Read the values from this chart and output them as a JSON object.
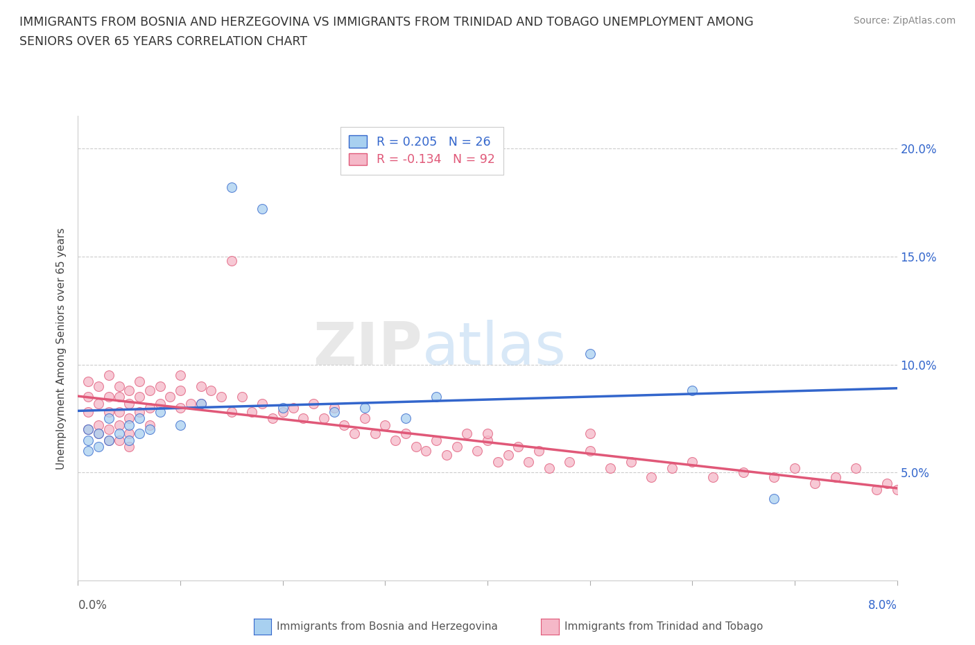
{
  "title_line1": "IMMIGRANTS FROM BOSNIA AND HERZEGOVINA VS IMMIGRANTS FROM TRINIDAD AND TOBAGO UNEMPLOYMENT AMONG",
  "title_line2": "SENIORS OVER 65 YEARS CORRELATION CHART",
  "source": "Source: ZipAtlas.com",
  "ylabel": "Unemployment Among Seniors over 65 years",
  "yticks": [
    "5.0%",
    "10.0%",
    "15.0%",
    "20.0%"
  ],
  "ytick_values": [
    0.05,
    0.1,
    0.15,
    0.2
  ],
  "xrange": [
    0.0,
    0.08
  ],
  "yrange": [
    0.0,
    0.215
  ],
  "legend_r1": "R = 0.205",
  "legend_n1": "N = 26",
  "legend_r2": "R = -0.134",
  "legend_n2": "N = 92",
  "color_blue": "#a8d0f0",
  "color_pink": "#f5b8c8",
  "color_blue_line": "#3366cc",
  "color_pink_line": "#e05878",
  "watermark_zip": "ZIP",
  "watermark_atlas": "atlas",
  "bosnia_x": [
    0.001,
    0.001,
    0.001,
    0.002,
    0.002,
    0.003,
    0.003,
    0.004,
    0.005,
    0.005,
    0.006,
    0.006,
    0.007,
    0.008,
    0.01,
    0.012,
    0.015,
    0.018,
    0.02,
    0.025,
    0.028,
    0.032,
    0.035,
    0.05,
    0.06,
    0.068
  ],
  "bosnia_y": [
    0.06,
    0.065,
    0.07,
    0.062,
    0.068,
    0.065,
    0.075,
    0.068,
    0.065,
    0.072,
    0.068,
    0.075,
    0.07,
    0.078,
    0.072,
    0.082,
    0.182,
    0.172,
    0.08,
    0.078,
    0.08,
    0.075,
    0.085,
    0.105,
    0.088,
    0.038
  ],
  "trinidad_x": [
    0.001,
    0.001,
    0.001,
    0.001,
    0.002,
    0.002,
    0.002,
    0.002,
    0.003,
    0.003,
    0.003,
    0.003,
    0.003,
    0.004,
    0.004,
    0.004,
    0.004,
    0.004,
    0.005,
    0.005,
    0.005,
    0.005,
    0.005,
    0.006,
    0.006,
    0.006,
    0.007,
    0.007,
    0.007,
    0.008,
    0.008,
    0.009,
    0.01,
    0.01,
    0.01,
    0.011,
    0.012,
    0.012,
    0.013,
    0.014,
    0.015,
    0.015,
    0.016,
    0.017,
    0.018,
    0.019,
    0.02,
    0.021,
    0.022,
    0.023,
    0.024,
    0.025,
    0.026,
    0.027,
    0.028,
    0.029,
    0.03,
    0.031,
    0.032,
    0.033,
    0.034,
    0.035,
    0.036,
    0.037,
    0.038,
    0.039,
    0.04,
    0.041,
    0.042,
    0.043,
    0.044,
    0.045,
    0.046,
    0.048,
    0.05,
    0.052,
    0.054,
    0.056,
    0.058,
    0.06,
    0.062,
    0.065,
    0.068,
    0.07,
    0.072,
    0.074,
    0.076,
    0.078,
    0.079,
    0.08,
    0.04,
    0.05
  ],
  "trinidad_y": [
    0.07,
    0.078,
    0.085,
    0.092,
    0.082,
    0.09,
    0.072,
    0.068,
    0.095,
    0.085,
    0.078,
    0.07,
    0.065,
    0.09,
    0.085,
    0.078,
    0.072,
    0.065,
    0.088,
    0.082,
    0.075,
    0.068,
    0.062,
    0.092,
    0.085,
    0.078,
    0.088,
    0.08,
    0.072,
    0.09,
    0.082,
    0.085,
    0.095,
    0.088,
    0.08,
    0.082,
    0.09,
    0.082,
    0.088,
    0.085,
    0.148,
    0.078,
    0.085,
    0.078,
    0.082,
    0.075,
    0.078,
    0.08,
    0.075,
    0.082,
    0.075,
    0.08,
    0.072,
    0.068,
    0.075,
    0.068,
    0.072,
    0.065,
    0.068,
    0.062,
    0.06,
    0.065,
    0.058,
    0.062,
    0.068,
    0.06,
    0.065,
    0.055,
    0.058,
    0.062,
    0.055,
    0.06,
    0.052,
    0.055,
    0.06,
    0.052,
    0.055,
    0.048,
    0.052,
    0.055,
    0.048,
    0.05,
    0.048,
    0.052,
    0.045,
    0.048,
    0.052,
    0.042,
    0.045,
    0.042,
    0.068,
    0.068
  ]
}
